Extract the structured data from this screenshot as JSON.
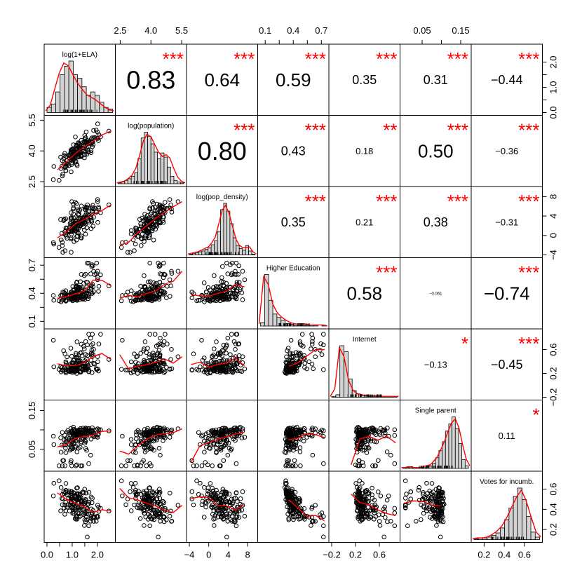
{
  "chart_data": {
    "type": "scatter",
    "layout": "scatterplot-matrix",
    "variables": [
      {
        "label": "log(1+ELA)",
        "range": [
          0,
          2.6
        ]
      },
      {
        "label": "log(population)",
        "range": [
          2.4,
          5.6
        ]
      },
      {
        "label": "log(pop_density)",
        "range": [
          -4,
          9.5
        ]
      },
      {
        "label": "Higher Education",
        "range": [
          0.05,
          0.75
        ]
      },
      {
        "label": "Internet",
        "range": [
          -0.2,
          0.9
        ]
      },
      {
        "label": "Single parent",
        "range": [
          0,
          0.17
        ]
      },
      {
        "label": "Votes for incumb.",
        "range": [
          0.1,
          0.75
        ]
      }
    ],
    "ticks": {
      "top": [
        {
          "col": 1,
          "labels": [
            "2.5",
            "4.0",
            "5.5"
          ],
          "values": [
            2.5,
            4.0,
            5.5
          ]
        },
        {
          "col": 3,
          "labels": [
            "0.1",
            "0.4",
            "0.7"
          ],
          "values": [
            0.1,
            0.4,
            0.7
          ],
          "minor": [
            0.25,
            0.55
          ]
        },
        {
          "col": 5,
          "labels": [
            "0.05",
            "0.15"
          ],
          "values": [
            0.05,
            0.15
          ],
          "minor": [
            0.1
          ]
        }
      ],
      "bottom": [
        {
          "col": 0,
          "labels": [
            "0.0",
            "1.0",
            "2.0"
          ],
          "values": [
            0,
            1,
            2
          ],
          "minor": [
            0.5,
            1.5
          ]
        },
        {
          "col": 2,
          "labels": [
            "−4",
            "0",
            "4",
            "8"
          ],
          "values": [
            -4,
            0,
            4,
            8
          ]
        },
        {
          "col": 4,
          "labels": [
            "−0.2",
            "0.2",
            "0.6"
          ],
          "values": [
            -0.2,
            0.2,
            0.6
          ]
        },
        {
          "col": 6,
          "labels": [
            "0.2",
            "0.4",
            "0.6"
          ],
          "values": [
            0.2,
            0.4,
            0.6
          ]
        }
      ],
      "left": [
        {
          "row": 1,
          "labels": [
            "2.5",
            "4.0",
            "5.5"
          ],
          "values": [
            2.5,
            4.0,
            5.5
          ]
        },
        {
          "row": 3,
          "labels": [
            "0.1",
            "0.4",
            "0.7"
          ],
          "values": [
            0.1,
            0.4,
            0.7
          ],
          "minor": [
            0.25,
            0.55
          ]
        },
        {
          "row": 5,
          "labels": [
            "0.05",
            "0.15"
          ],
          "values": [
            0.05,
            0.15
          ],
          "minor": [
            0.1
          ]
        }
      ],
      "right": [
        {
          "row": 0,
          "labels": [
            "0.0",
            "1.0",
            "2.0"
          ],
          "values": [
            0,
            1,
            2
          ],
          "minor": [
            0.5,
            1.5
          ]
        },
        {
          "row": 2,
          "labels": [
            "−4",
            "0",
            "4",
            "8"
          ],
          "values": [
            -4,
            0,
            4,
            8
          ]
        },
        {
          "row": 4,
          "labels": [
            "−0.2",
            "0.2",
            "0.6"
          ],
          "values": [
            -0.2,
            0.2,
            0.6
          ]
        },
        {
          "row": 6,
          "labels": [
            "0.2",
            "0.4",
            "0.6"
          ],
          "values": [
            0.2,
            0.4,
            0.6
          ]
        }
      ]
    },
    "correlations": [
      {
        "row": 0,
        "col": 1,
        "value": "0.83",
        "stars": "***",
        "size": "xl"
      },
      {
        "row": 0,
        "col": 2,
        "value": "0.64",
        "stars": "***",
        "size": "l"
      },
      {
        "row": 0,
        "col": 3,
        "value": "0.59",
        "stars": "***",
        "size": "l"
      },
      {
        "row": 0,
        "col": 4,
        "value": "0.35",
        "stars": "***",
        "size": "m"
      },
      {
        "row": 0,
        "col": 5,
        "value": "0.31",
        "stars": "***",
        "size": "m"
      },
      {
        "row": 0,
        "col": 6,
        "value": "−0.44",
        "stars": "***",
        "size": "m"
      },
      {
        "row": 1,
        "col": 2,
        "value": "0.80",
        "stars": "***",
        "size": "xl"
      },
      {
        "row": 1,
        "col": 3,
        "value": "0.43",
        "stars": "***",
        "size": "m"
      },
      {
        "row": 1,
        "col": 4,
        "value": "0.18",
        "stars": "**",
        "size": "s"
      },
      {
        "row": 1,
        "col": 5,
        "value": "0.50",
        "stars": "***",
        "size": "l"
      },
      {
        "row": 1,
        "col": 6,
        "value": "−0.36",
        "stars": "***",
        "size": "s"
      },
      {
        "row": 2,
        "col": 3,
        "value": "0.35",
        "stars": "***",
        "size": "m"
      },
      {
        "row": 2,
        "col": 4,
        "value": "0.21",
        "stars": "***",
        "size": "s"
      },
      {
        "row": 2,
        "col": 5,
        "value": "0.38",
        "stars": "***",
        "size": "m"
      },
      {
        "row": 2,
        "col": 6,
        "value": "−0.31",
        "stars": "***",
        "size": "s"
      },
      {
        "row": 3,
        "col": 4,
        "value": "0.58",
        "stars": "***",
        "size": "l"
      },
      {
        "row": 3,
        "col": 5,
        "value": "−0.061",
        "stars": "",
        "size": "xs"
      },
      {
        "row": 3,
        "col": 6,
        "value": "−0.74",
        "stars": "***",
        "size": "l"
      },
      {
        "row": 4,
        "col": 5,
        "value": "−0.13",
        "stars": "*",
        "size": "s"
      },
      {
        "row": 4,
        "col": 6,
        "value": "−0.45",
        "stars": "***",
        "size": "m"
      },
      {
        "row": 5,
        "col": 6,
        "value": "0.11",
        "stars": "*",
        "size": "s"
      }
    ],
    "histograms": [
      {
        "counts": [
          3,
          5,
          12,
          22,
          27,
          30,
          22,
          20,
          15,
          10,
          12,
          10,
          6,
          3,
          2
        ],
        "density": [
          2,
          8,
          26,
          44,
          55,
          52,
          42,
          33,
          26,
          20,
          17,
          14,
          10,
          6,
          3,
          2
        ]
      },
      {
        "counts": [
          1,
          2,
          4,
          6,
          9,
          13,
          30,
          55,
          62,
          57,
          48,
          38,
          30,
          37,
          32,
          20,
          9,
          4,
          2,
          1
        ],
        "density": [
          1,
          2,
          3,
          6,
          10,
          18,
          33,
          50,
          58,
          55,
          46,
          37,
          32,
          34,
          30,
          18,
          8,
          3,
          1
        ]
      },
      {
        "counts": [
          1,
          2,
          3,
          4,
          5,
          7,
          9,
          13,
          18,
          30,
          58,
          66,
          56,
          40,
          22,
          12,
          8,
          6,
          12,
          5,
          1
        ],
        "density": [
          1,
          2,
          3,
          4,
          6,
          8,
          10,
          15,
          22,
          38,
          55,
          61,
          52,
          36,
          20,
          12,
          9,
          9,
          10,
          4,
          1
        ]
      },
      {
        "counts": [
          4,
          60,
          30,
          14,
          10,
          7,
          3,
          2,
          1,
          1,
          1,
          1,
          1,
          1,
          0,
          1
        ],
        "density": [
          2,
          45,
          38,
          20,
          12,
          8,
          5,
          3,
          2,
          2,
          2,
          1,
          1,
          1,
          1,
          0
        ]
      },
      {
        "counts": [
          1,
          3,
          62,
          55,
          22,
          8,
          4,
          2,
          2,
          1,
          1,
          1,
          1,
          1,
          1,
          1
        ],
        "density": [
          1,
          10,
          58,
          48,
          20,
          8,
          4,
          3,
          2,
          2,
          2,
          1,
          1,
          1,
          1,
          1
        ]
      },
      {
        "counts": [
          1,
          1,
          2,
          1,
          1,
          1,
          1,
          2,
          3,
          6,
          12,
          20,
          30,
          42,
          50,
          58,
          45,
          28,
          10,
          3
        ],
        "density": [
          1,
          1,
          2,
          1,
          1,
          1,
          2,
          3,
          4,
          8,
          13,
          21,
          30,
          41,
          50,
          54,
          44,
          26,
          10,
          3
        ]
      },
      {
        "counts": [
          1,
          2,
          2,
          3,
          5,
          8,
          14,
          24,
          38,
          52,
          62,
          48,
          28,
          9,
          3
        ],
        "density": [
          1,
          2,
          2,
          3,
          6,
          10,
          16,
          26,
          38,
          50,
          58,
          45,
          26,
          9,
          3
        ]
      }
    ],
    "colors": {
      "fit": "#ff0000",
      "stars": "#ff0000",
      "bars": "#d3d3d3",
      "points": "#000000"
    }
  }
}
